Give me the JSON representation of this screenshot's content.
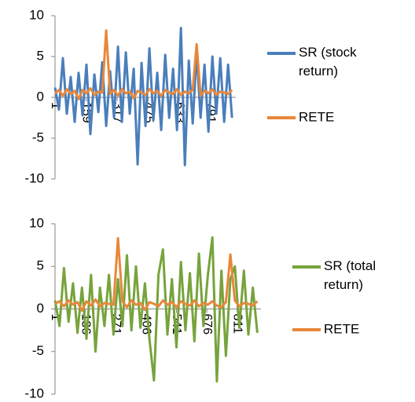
{
  "chart_data": [
    {
      "type": "line",
      "x": [
        1,
        21,
        41,
        61,
        81,
        101,
        121,
        141,
        161,
        181,
        201,
        221,
        241,
        261,
        281,
        301,
        321,
        341,
        361,
        381,
        401,
        421,
        441,
        461,
        481,
        501,
        521,
        541,
        561,
        581,
        601,
        621,
        641,
        661,
        681,
        701,
        721,
        741,
        761,
        781,
        801,
        821,
        841,
        861,
        881,
        901
      ],
      "series": [
        {
          "name": "SR (stock return)",
          "color": "#4a7ebb",
          "values": [
            1.2,
            -1.5,
            4.8,
            -2.0,
            2.5,
            -3.0,
            3.0,
            -2.2,
            4.0,
            -4.5,
            2.8,
            -1.8,
            4.3,
            -3.5,
            3.2,
            -2.5,
            6.2,
            -3.0,
            5.5,
            -2.0,
            3.5,
            -8.2,
            4.2,
            -3.5,
            6.0,
            -2.8,
            3.0,
            -4.0,
            5.2,
            -2.5,
            3.5,
            -4.0,
            8.5,
            -8.3,
            4.5,
            -3.2,
            5.5,
            -2.5,
            4.0,
            -4.2,
            5.0,
            -2.0,
            4.8,
            -3.0,
            4.0,
            -2.5
          ]
        },
        {
          "name": "RETE",
          "color": "#e8873a",
          "values": [
            0.5,
            0.9,
            0.2,
            1.0,
            0.4,
            0.8,
            -0.2,
            0.9,
            0.5,
            1.1,
            0.3,
            0.7,
            0.6,
            8.2,
            0.4,
            0.9,
            0.2,
            1.0,
            0.5,
            0.7,
            -0.1,
            0.8,
            0.6,
            0.3,
            1.0,
            0.5,
            0.8,
            0.2,
            0.9,
            0.6,
            0.4,
            1.0,
            0.3,
            0.7,
            0.5,
            0.9,
            6.5,
            0.2,
            0.8,
            0.5,
            1.0,
            0.3,
            0.7,
            0.6,
            0.4,
            0.9
          ]
        }
      ],
      "xlim": [
        1,
        920
      ],
      "xticks": [
        1,
        159,
        317,
        475,
        633,
        791
      ],
      "ylim": [
        -10,
        10
      ],
      "yticks": [
        -10,
        -5,
        0,
        5,
        10
      ]
    },
    {
      "type": "line",
      "x": [
        1,
        21,
        41,
        61,
        81,
        101,
        121,
        141,
        161,
        181,
        201,
        221,
        241,
        261,
        281,
        301,
        321,
        341,
        361,
        381,
        401,
        421,
        441,
        461,
        481,
        501,
        521,
        541,
        561,
        581,
        601,
        621,
        641,
        661,
        681,
        701,
        721,
        741,
        761,
        781,
        801,
        821,
        841,
        861,
        881,
        901
      ],
      "series": [
        {
          "name": "SR (total return)",
          "color": "#77a33c",
          "values": [
            1.0,
            -2.0,
            4.8,
            -1.5,
            3.0,
            -2.8,
            2.5,
            -3.5,
            4.0,
            -5.0,
            2.5,
            -2.0,
            4.0,
            -3.0,
            3.5,
            -2.0,
            6.3,
            -2.5,
            5.0,
            -2.2,
            3.0,
            -3.5,
            -8.4,
            4.0,
            7.0,
            -3.0,
            3.5,
            -4.5,
            5.5,
            -2.5,
            4.2,
            -3.8,
            6.5,
            -2.0,
            4.0,
            8.4,
            -8.5,
            4.5,
            -5.5,
            3.5,
            5.0,
            -2.2,
            4.5,
            -3.0,
            2.5,
            -2.8
          ]
        },
        {
          "name": "RETE",
          "color": "#e8873a",
          "values": [
            0.6,
            0.9,
            0.3,
            1.0,
            0.5,
            0.8,
            -0.2,
            0.9,
            0.4,
            1.1,
            0.3,
            0.7,
            0.6,
            0.5,
            8.3,
            0.9,
            0.2,
            1.0,
            0.5,
            0.7,
            -0.1,
            0.8,
            0.6,
            0.3,
            1.0,
            0.5,
            0.8,
            0.2,
            0.9,
            0.6,
            0.4,
            1.0,
            0.3,
            0.7,
            0.5,
            0.9,
            0.4,
            0.2,
            0.8,
            6.4,
            1.0,
            0.3,
            0.7,
            0.6,
            0.4,
            0.9
          ]
        }
      ],
      "xlim": [
        1,
        917
      ],
      "xticks": [
        1,
        136,
        271,
        406,
        541,
        676,
        811
      ],
      "ylim": [
        -10,
        10
      ],
      "yticks": [
        -10,
        -5,
        0,
        5,
        10
      ]
    }
  ]
}
